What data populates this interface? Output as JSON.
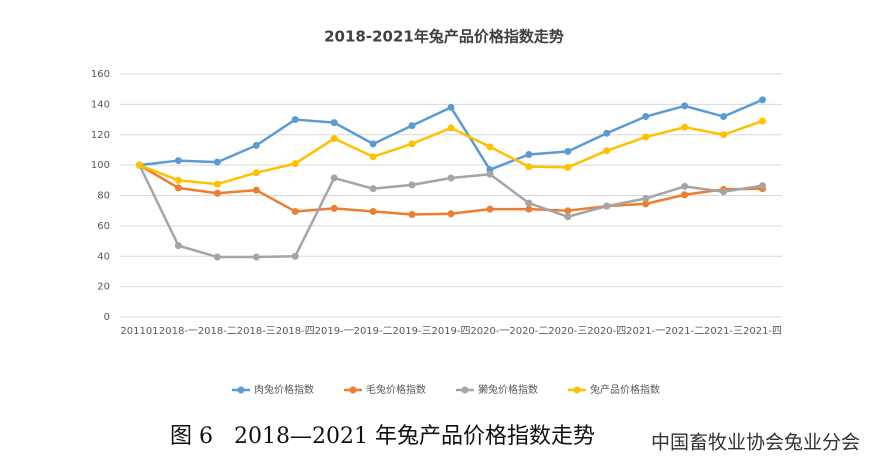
{
  "chart_data": {
    "type": "line",
    "title": "2018-2021年兔产品价格指数走势",
    "categories": [
      "201101",
      "2018-一",
      "2018-二",
      "2018-三",
      "2018-四",
      "2019-一",
      "2019-二",
      "2019-三",
      "2019-四",
      "2020-一",
      "2020-二",
      "2020-三",
      "2020-四",
      "2021-一",
      "2021-二",
      "2021-三",
      "2021-四"
    ],
    "series": [
      {
        "name": "肉兔价格指数",
        "color": "#5b9bd5",
        "values": [
          100,
          103,
          102,
          113,
          130,
          128,
          114,
          126,
          138,
          97,
          107,
          109,
          121,
          132,
          139,
          132,
          143
        ]
      },
      {
        "name": "毛兔价格指数",
        "color": "#ed7d31",
        "values": [
          100,
          85,
          81.5,
          83.5,
          69.5,
          71.5,
          69.5,
          67.5,
          68,
          71,
          71,
          70,
          73,
          74.5,
          80.5,
          84,
          84.5
        ]
      },
      {
        "name": "獭兔价格指数",
        "color": "#a5a5a5",
        "values": [
          100,
          47,
          39.5,
          39.5,
          40,
          91.5,
          84.5,
          87,
          91.5,
          94,
          75,
          66,
          73,
          78,
          86,
          82.5,
          86.5
        ]
      },
      {
        "name": "兔产品价格指数",
        "color": "#ffc000",
        "values": [
          100,
          90,
          87.5,
          95,
          101,
          117.5,
          105.5,
          114,
          124.5,
          112,
          99,
          98.5,
          109.5,
          118.5,
          125,
          120,
          129
        ]
      }
    ],
    "ylim": [
      0,
      160
    ],
    "yticks": [
      0,
      20,
      40,
      60,
      80,
      100,
      120,
      140,
      160
    ],
    "grid": true,
    "legend": "bottom"
  },
  "caption": "图 6   2018—2021 年兔产品价格指数走势",
  "watermark": "中国畜牧业协会兔业分会"
}
